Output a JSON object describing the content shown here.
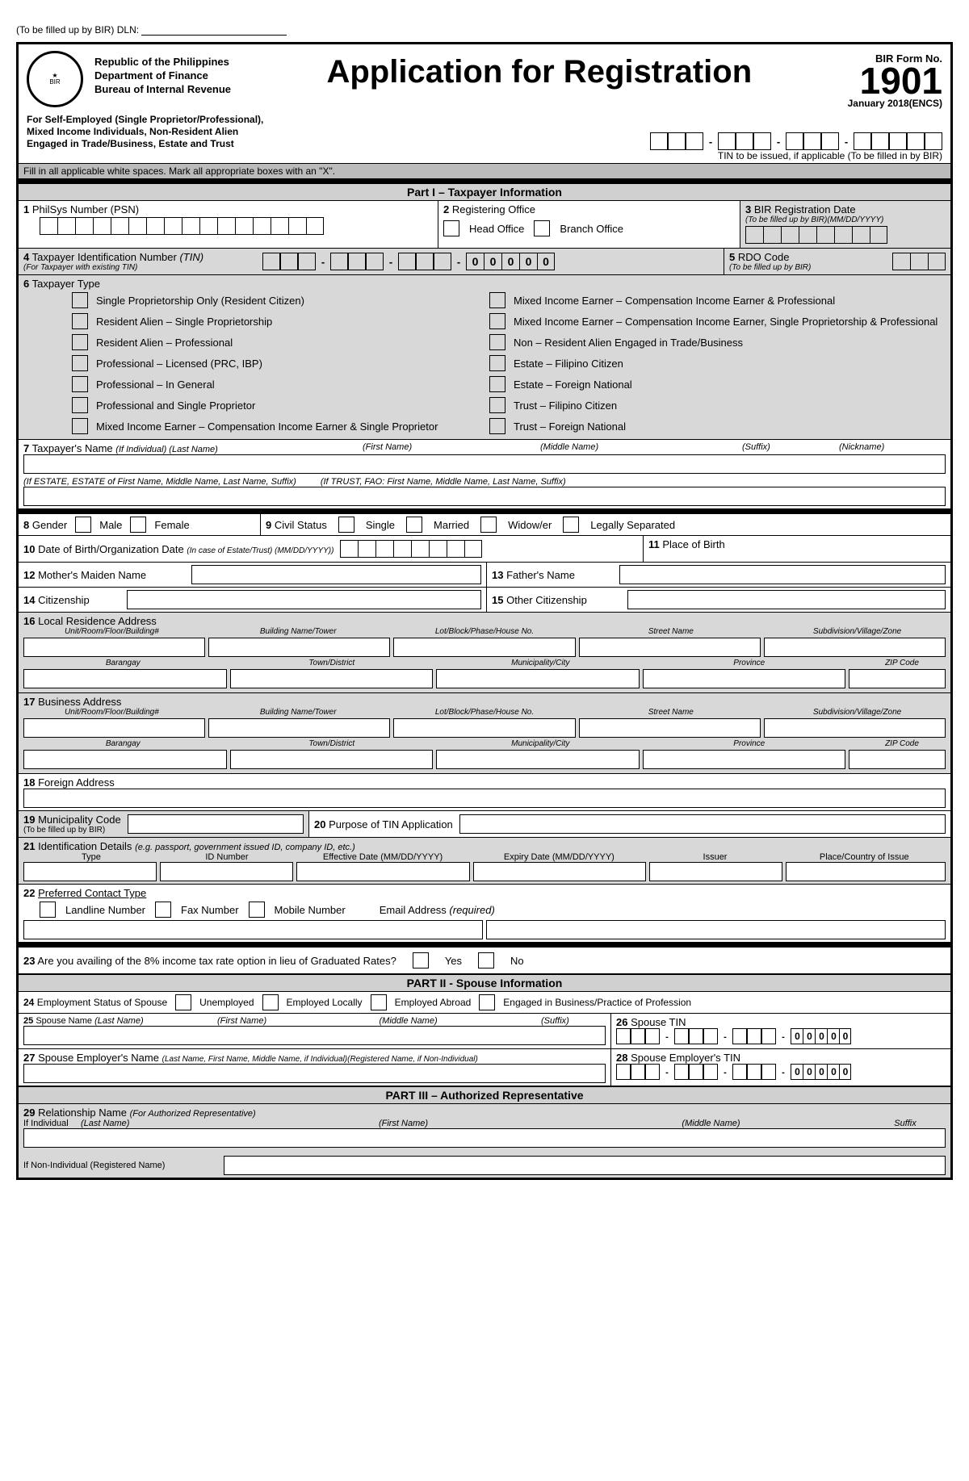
{
  "dln": "(To be filled up by BIR) DLN:",
  "agency": {
    "l1": "Republic of the Philippines",
    "l2": "Department of Finance",
    "l3": "Bureau of Internal Revenue"
  },
  "title": "Application for Registration",
  "formNo": {
    "label": "BIR Form No.",
    "num": "1901",
    "date": "January 2018(ENCS)"
  },
  "subheader": {
    "l1": "For Self-Employed (Single Proprietor/Professional),",
    "l2": "Mixed Income Individuals, Non-Resident Alien",
    "l3": "Engaged in Trade/Business, Estate and Trust"
  },
  "tinCaption": "TIN to be issued, if applicable (To be filled in by BIR)",
  "grayInstr": "Fill in all applicable white spaces. Mark all appropriate boxes with an \"X\".",
  "part1": "Part I – Taxpayer Information",
  "f1": {
    "num": "1",
    "label": "PhilSys Number (PSN)"
  },
  "f2": {
    "num": "2",
    "label": "Registering Office",
    "head": "Head Office",
    "branch": "Branch Office"
  },
  "f3": {
    "num": "3",
    "label": "BIR Registration Date",
    "sub": "(To be filled up by BIR)(MM/DD/YYYY)"
  },
  "f4": {
    "num": "4",
    "label": "Taxpayer Identification Number",
    "abbr": "(TIN)",
    "sub": "(For Taxpayer with existing TIN)"
  },
  "f5": {
    "num": "5",
    "label": "RDO Code",
    "sub": "(To be filled up by BIR)"
  },
  "f6": {
    "num": "6",
    "label": "Taxpayer Type"
  },
  "taxpayerTypes": {
    "left": [
      "Single Proprietorship Only (Resident Citizen)",
      "Resident Alien – Single Proprietorship",
      "Resident Alien – Professional",
      "Professional – Licensed (PRC, IBP)",
      "Professional – In General",
      "Professional and Single Proprietor",
      "Mixed Income Earner – Compensation Income Earner & Single Proprietor"
    ],
    "right": [
      "Mixed Income Earner – Compensation Income Earner & Professional",
      "Mixed Income Earner – Compensation Income Earner, Single Proprietorship & Professional",
      "Non – Resident Alien Engaged in Trade/Business",
      "Estate – Filipino Citizen",
      "Estate – Foreign National",
      "Trust – Filipino Citizen",
      "Trust – Foreign National"
    ]
  },
  "f7": {
    "num": "7",
    "label": "Taxpayer's Name",
    "sub1": "(If Individual) (Last Name)",
    "fn": "(First Name)",
    "mn": "(Middle Name)",
    "sfx": "(Suffix)",
    "nick": "(Nickname)",
    "estate": "(If ESTATE, ESTATE of First Name, Middle Name, Last Name, Suffix)",
    "trust": "(If TRUST, FAO: First Name, Middle Name, Last Name, Suffix)"
  },
  "f8": {
    "num": "8",
    "label": "Gender",
    "m": "Male",
    "f": "Female"
  },
  "f9": {
    "num": "9",
    "label": "Civil Status",
    "s": "Single",
    "mr": "Married",
    "w": "Widow/er",
    "ls": "Legally Separated"
  },
  "f10": {
    "num": "10",
    "label": "Date of Birth/Organization Date",
    "sub": "(In case of Estate/Trust) (MM/DD/YYYY))"
  },
  "f11": {
    "num": "11",
    "label": "Place of Birth"
  },
  "f12": {
    "num": "12",
    "label": "Mother's Maiden Name"
  },
  "f13": {
    "num": "13",
    "label": "Father's Name"
  },
  "f14": {
    "num": "14",
    "label": "Citizenship"
  },
  "f15": {
    "num": "15",
    "label": "Other Citizenship"
  },
  "f16": {
    "num": "16",
    "label": "Local Residence Address"
  },
  "f17": {
    "num": "17",
    "label": "Business Address"
  },
  "addr": {
    "unit": "Unit/Room/Floor/Building#",
    "bldg": "Building Name/Tower",
    "lot": "Lot/Block/Phase/House No.",
    "street": "Street Name",
    "subd": "Subdivision/Village/Zone",
    "brgy": "Barangay",
    "town": "Town/District",
    "city": "Municipality/City",
    "prov": "Province",
    "zip": "ZIP Code"
  },
  "f18": {
    "num": "18",
    "label": "Foreign Address"
  },
  "f19": {
    "num": "19",
    "label": "Municipality Code",
    "sub": "(To be filled up by BIR)"
  },
  "f20": {
    "num": "20",
    "label": "Purpose of TIN Application"
  },
  "f21": {
    "num": "21",
    "label": "Identification Details",
    "sub": "(e.g. passport, government issued ID, company ID, etc.)",
    "type": "Type",
    "id": "ID Number",
    "eff": "Effective Date (MM/DD/YYYY)",
    "exp": "Expiry Date (MM/DD/YYYY)",
    "iss": "Issuer",
    "place": "Place/Country of Issue"
  },
  "f22": {
    "num": "22",
    "label": "Preferred Contact Type",
    "land": "Landline Number",
    "fax": "Fax Number",
    "mob": "Mobile Number",
    "email": "Email Address",
    "req": "(required)"
  },
  "f23": {
    "num": "23",
    "label": "Are you availing of the 8% income tax rate option in lieu of Graduated Rates?",
    "yes": "Yes",
    "no": "No"
  },
  "part2": "PART II - Spouse Information",
  "f24": {
    "num": "24",
    "label": "Employment Status of Spouse",
    "un": "Unemployed",
    "loc": "Employed Locally",
    "ab": "Employed Abroad",
    "biz": "Engaged in Business/Practice of Profession"
  },
  "f25": {
    "num": "25",
    "label": "Spouse Name",
    "ln": "(Last Name)",
    "fn": "(First Name)",
    "mn": "(Middle Name)",
    "sfx": "(Suffix)"
  },
  "f26": {
    "num": "26",
    "label": "Spouse TIN"
  },
  "f27": {
    "num": "27",
    "label": "Spouse Employer's Name",
    "sub": "(Last Name, First Name, Middle Name, if Individual)(Registered Name, if Non-Individual)"
  },
  "f28": {
    "num": "28",
    "label": "Spouse Employer's TIN"
  },
  "part3": "PART III – Authorized Representative",
  "f29": {
    "num": "29",
    "label": "Relationship Name",
    "sub": "(For Authorized Representative)",
    "ind": "If Individual",
    "ln": "(Last Name)",
    "fn": "(First Name)",
    "mn": "(Middle Name)",
    "sfx": "Suffix",
    "nonind": "If Non-Individual (Registered Name)"
  },
  "zeros5": [
    "0",
    "0",
    "0",
    "0",
    "0"
  ]
}
